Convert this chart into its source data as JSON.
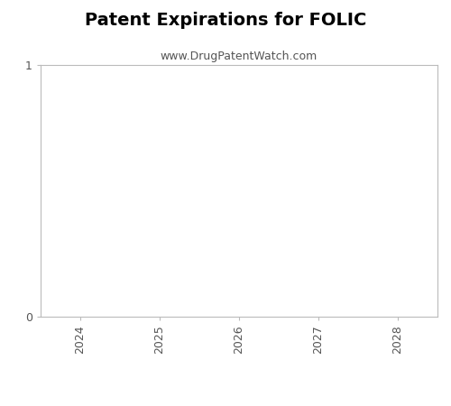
{
  "title": "Patent Expirations for FOLIC",
  "subtitle": "www.DrugPatentWatch.com",
  "title_fontsize": 14,
  "subtitle_fontsize": 9,
  "title_fontweight": "bold",
  "x_years": [
    2024,
    2025,
    2026,
    2027,
    2028
  ],
  "xlim": [
    2023.5,
    2028.5
  ],
  "ylim": [
    0,
    1
  ],
  "yticks": [
    0,
    1
  ],
  "background_color": "#ffffff",
  "title_color": "#000000",
  "subtitle_color": "#555555",
  "tick_label_color": "#555555",
  "spine_color": "#bbbbbb",
  "tick_color": "#bbbbbb"
}
